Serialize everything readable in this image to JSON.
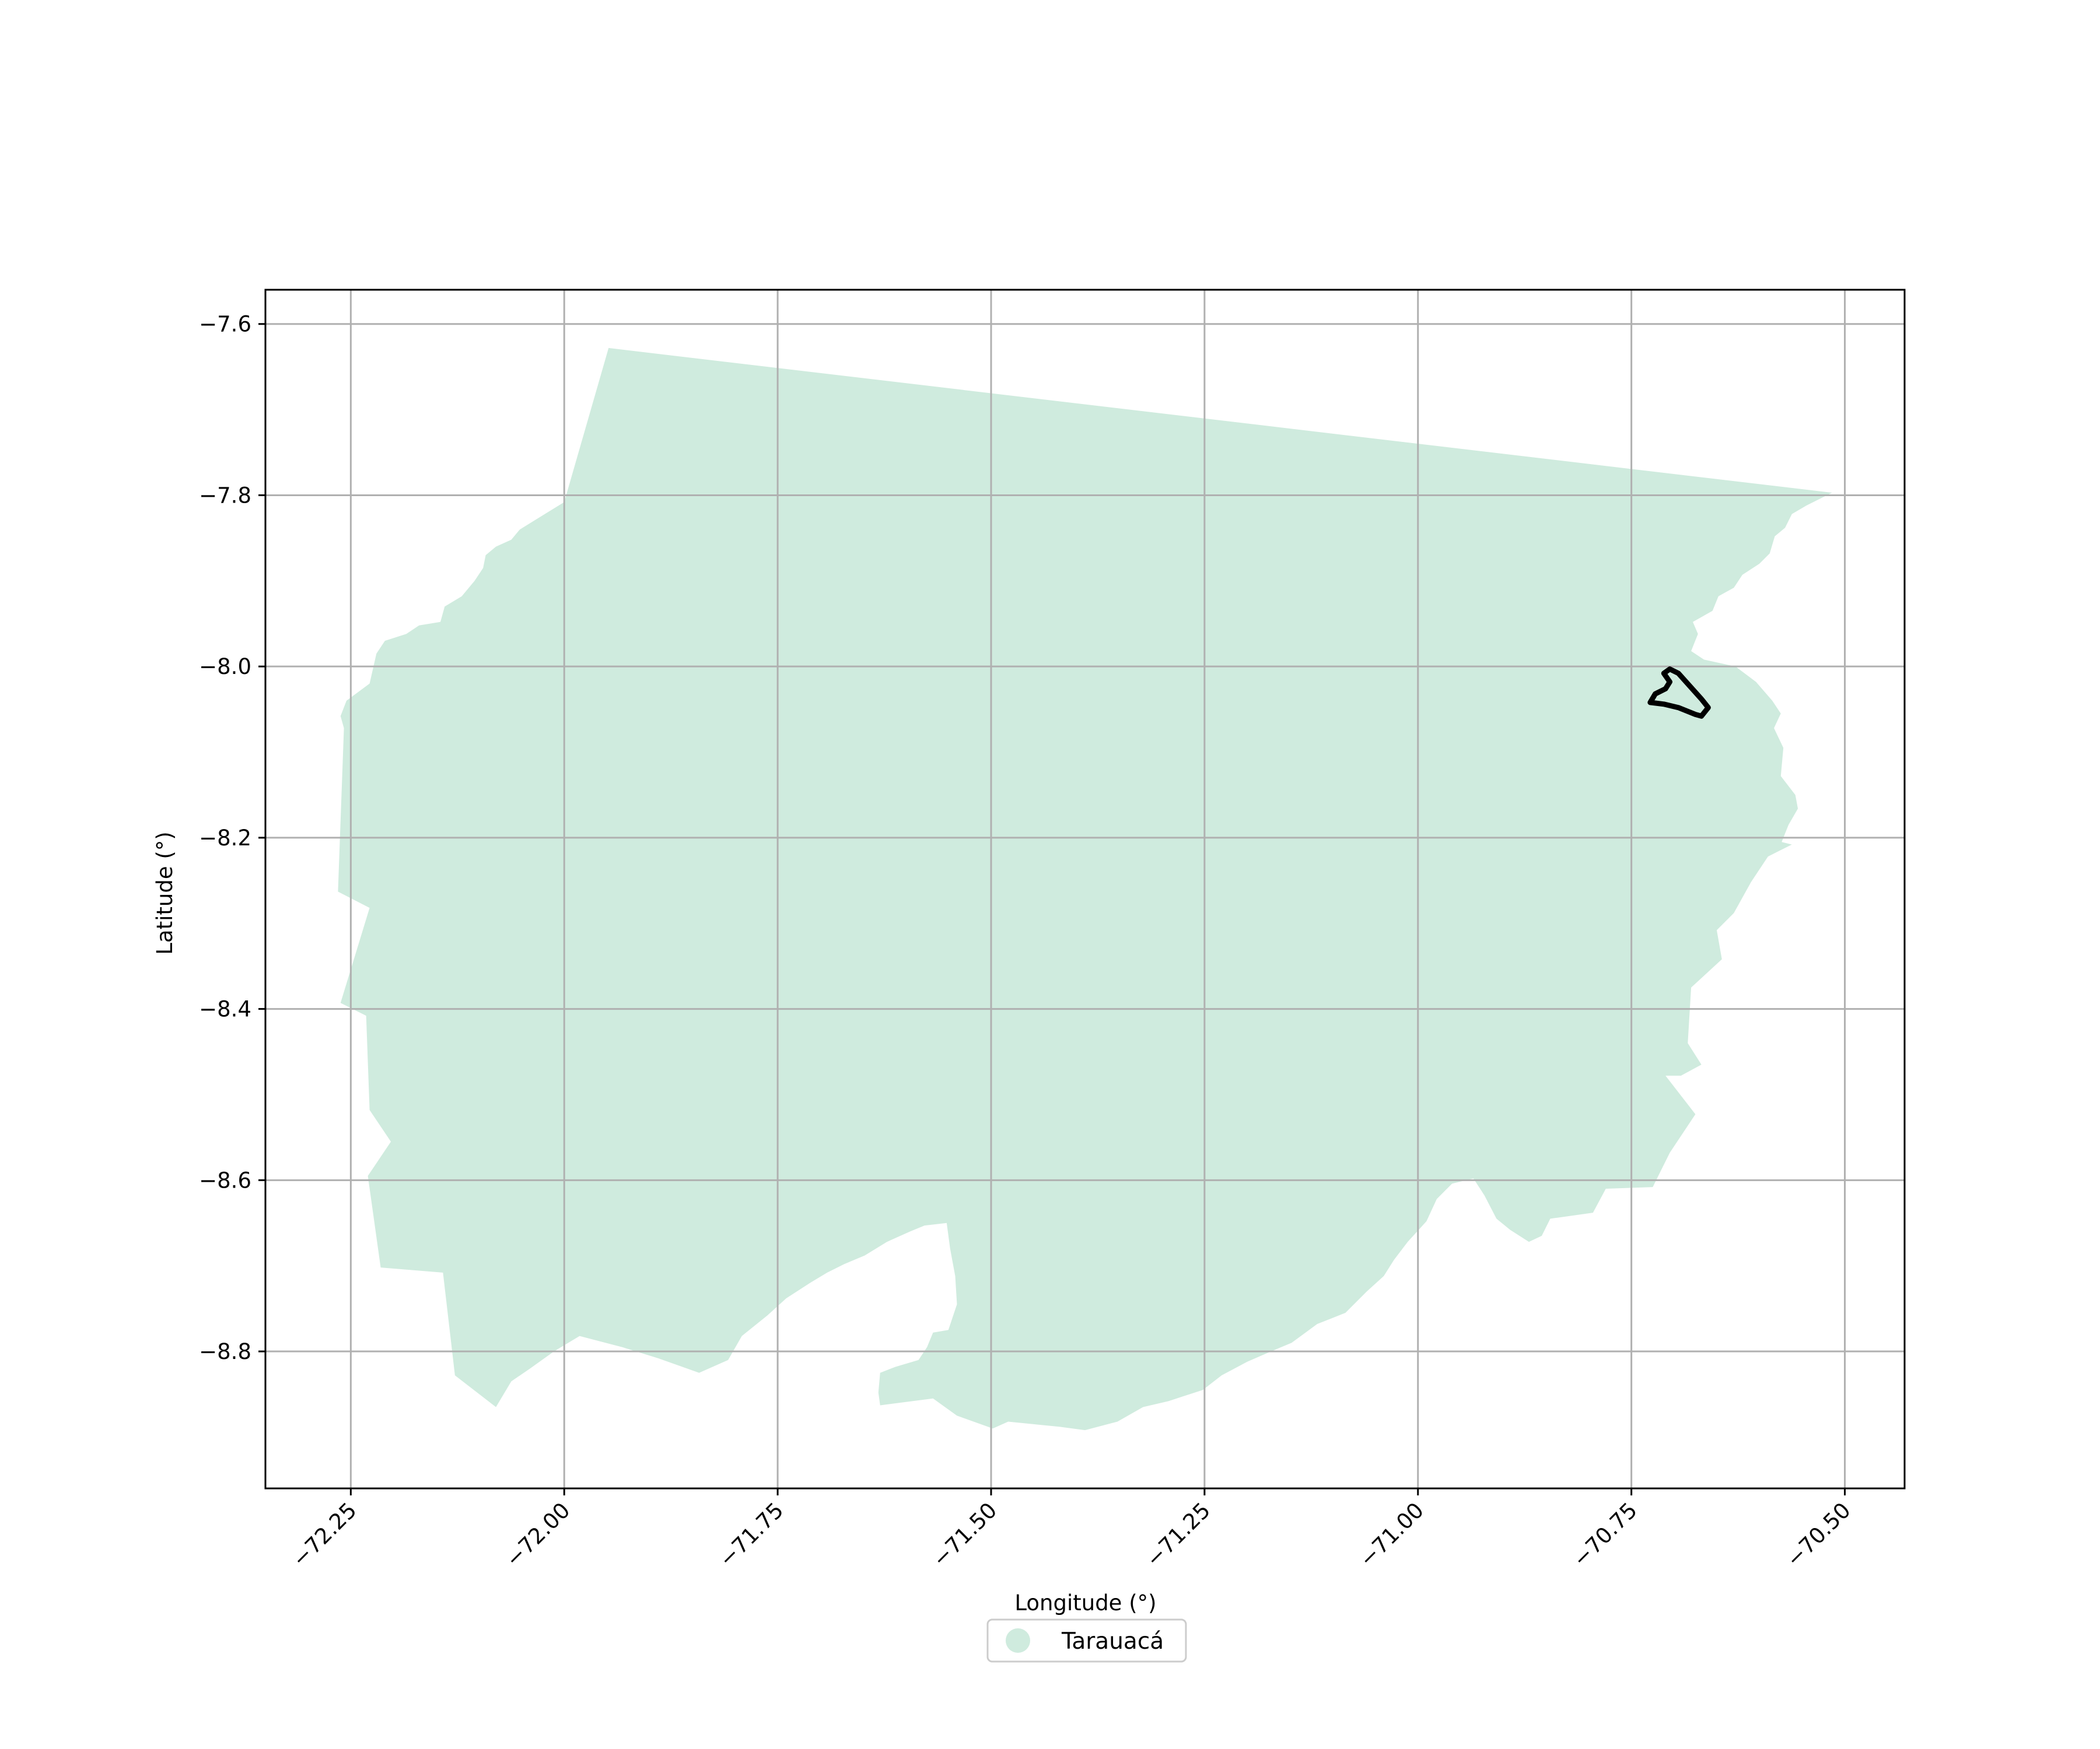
{
  "map": {
    "xlabel": "Longitude (°)",
    "ylabel": "Latitude (°)",
    "xlim": [
      -72.35,
      -70.43
    ],
    "ylim": [
      -8.96,
      -7.56
    ],
    "x_ticks": [
      -72.25,
      -72.0,
      -71.75,
      -71.5,
      -71.25,
      -71.0,
      -70.75,
      -70.5
    ],
    "y_ticks": [
      -7.6,
      -7.8,
      -8.0,
      -8.2,
      -8.4,
      -8.6,
      -8.8
    ],
    "x_tick_labels": [
      "−72.25",
      "−72.00",
      "−71.75",
      "−71.50",
      "−71.25",
      "−71.00",
      "−70.75",
      "−70.50"
    ],
    "y_tick_labels": [
      "−7.6",
      "−7.8",
      "−8.0",
      "−8.2",
      "−8.4",
      "−8.6",
      "−8.8"
    ],
    "grid": true,
    "legend": {
      "placement": "bottom-center",
      "entries": [
        {
          "label": "Tarauacá",
          "color": "#cfebde"
        }
      ]
    },
    "colors": {
      "region_fill": "#cfebde",
      "grid": "#b0b0b0",
      "outline": "#000000"
    },
    "region": {
      "name": "Tarauacá",
      "boundary": [
        [
          -71.948,
          -7.628
        ],
        [
          -70.515,
          -7.797
        ],
        [
          -70.545,
          -7.812
        ],
        [
          -70.562,
          -7.822
        ],
        [
          -70.57,
          -7.838
        ],
        [
          -70.582,
          -7.848
        ],
        [
          -70.588,
          -7.868
        ],
        [
          -70.6,
          -7.88
        ],
        [
          -70.62,
          -7.893
        ],
        [
          -70.63,
          -7.908
        ],
        [
          -70.648,
          -7.918
        ],
        [
          -70.655,
          -7.935
        ],
        [
          -70.678,
          -7.948
        ],
        [
          -70.672,
          -7.962
        ],
        [
          -70.68,
          -7.982
        ],
        [
          -70.665,
          -7.992
        ],
        [
          -70.628,
          -8.0
        ],
        [
          -70.604,
          -8.018
        ],
        [
          -70.585,
          -8.04
        ],
        [
          -70.575,
          -8.055
        ],
        [
          -70.583,
          -8.072
        ],
        [
          -70.572,
          -8.095
        ],
        [
          -70.575,
          -8.128
        ],
        [
          -70.558,
          -8.15
        ],
        [
          -70.555,
          -8.166
        ],
        [
          -70.566,
          -8.185
        ],
        [
          -70.574,
          -8.205
        ],
        [
          -70.562,
          -8.208
        ],
        [
          -70.59,
          -8.222
        ],
        [
          -70.61,
          -8.252
        ],
        [
          -70.63,
          -8.288
        ],
        [
          -70.65,
          -8.308
        ],
        [
          -70.644,
          -8.342
        ],
        [
          -70.68,
          -8.375
        ],
        [
          -70.684,
          -8.44
        ],
        [
          -70.668,
          -8.465
        ],
        [
          -70.692,
          -8.478
        ],
        [
          -70.71,
          -8.478
        ],
        [
          -70.675,
          -8.523
        ],
        [
          -70.705,
          -8.568
        ],
        [
          -70.725,
          -8.608
        ],
        [
          -70.78,
          -8.61
        ],
        [
          -70.795,
          -8.638
        ],
        [
          -70.845,
          -8.645
        ],
        [
          -70.855,
          -8.665
        ],
        [
          -70.87,
          -8.672
        ],
        [
          -70.892,
          -8.658
        ],
        [
          -70.908,
          -8.645
        ],
        [
          -70.922,
          -8.618
        ],
        [
          -70.935,
          -8.598
        ],
        [
          -70.96,
          -8.604
        ],
        [
          -70.978,
          -8.622
        ],
        [
          -70.99,
          -8.648
        ],
        [
          -71.012,
          -8.672
        ],
        [
          -71.028,
          -8.693
        ],
        [
          -71.04,
          -8.712
        ],
        [
          -71.06,
          -8.73
        ],
        [
          -71.085,
          -8.755
        ],
        [
          -71.118,
          -8.768
        ],
        [
          -71.148,
          -8.79
        ],
        [
          -71.172,
          -8.8
        ],
        [
          -71.2,
          -8.812
        ],
        [
          -71.23,
          -8.828
        ],
        [
          -71.252,
          -8.845
        ],
        [
          -71.292,
          -8.858
        ],
        [
          -71.322,
          -8.865
        ],
        [
          -71.352,
          -8.882
        ],
        [
          -71.39,
          -8.892
        ],
        [
          -71.42,
          -8.888
        ],
        [
          -71.45,
          -8.885
        ],
        [
          -71.48,
          -8.882
        ],
        [
          -71.498,
          -8.89
        ],
        [
          -71.54,
          -8.875
        ],
        [
          -71.568,
          -8.855
        ],
        [
          -71.63,
          -8.863
        ],
        [
          -71.632,
          -8.848
        ],
        [
          -71.63,
          -8.825
        ],
        [
          -71.612,
          -8.818
        ],
        [
          -71.585,
          -8.81
        ],
        [
          -71.575,
          -8.795
        ],
        [
          -71.568,
          -8.778
        ],
        [
          -71.55,
          -8.775
        ],
        [
          -71.54,
          -8.745
        ],
        [
          -71.542,
          -8.712
        ],
        [
          -71.548,
          -8.68
        ],
        [
          -71.552,
          -8.65
        ],
        [
          -71.578,
          -8.653
        ],
        [
          -71.595,
          -8.66
        ],
        [
          -71.622,
          -8.672
        ],
        [
          -71.648,
          -8.688
        ],
        [
          -71.672,
          -8.698
        ],
        [
          -71.692,
          -8.708
        ],
        [
          -71.712,
          -8.72
        ],
        [
          -71.74,
          -8.738
        ],
        [
          -71.762,
          -8.758
        ],
        [
          -71.792,
          -8.782
        ],
        [
          -71.808,
          -8.81
        ],
        [
          -71.842,
          -8.825
        ],
        [
          -71.89,
          -8.808
        ],
        [
          -71.932,
          -8.795
        ],
        [
          -71.982,
          -8.782
        ],
        [
          -72.012,
          -8.8
        ],
        [
          -72.04,
          -8.82
        ],
        [
          -72.062,
          -8.835
        ],
        [
          -72.08,
          -8.865
        ],
        [
          -72.128,
          -8.828
        ],
        [
          -72.142,
          -8.708
        ],
        [
          -72.215,
          -8.702
        ],
        [
          -72.23,
          -8.595
        ],
        [
          -72.203,
          -8.555
        ],
        [
          -72.228,
          -8.518
        ],
        [
          -72.232,
          -8.408
        ],
        [
          -72.262,
          -8.393
        ],
        [
          -72.228,
          -8.282
        ],
        [
          -72.265,
          -8.263
        ],
        [
          -72.258,
          -8.072
        ],
        [
          -72.262,
          -8.058
        ],
        [
          -72.255,
          -8.04
        ],
        [
          -72.228,
          -8.02
        ],
        [
          -72.22,
          -7.985
        ],
        [
          -72.21,
          -7.97
        ],
        [
          -72.185,
          -7.962
        ],
        [
          -72.17,
          -7.952
        ],
        [
          -72.145,
          -7.948
        ],
        [
          -72.14,
          -7.93
        ],
        [
          -72.12,
          -7.918
        ],
        [
          -72.105,
          -7.9
        ],
        [
          -72.095,
          -7.885
        ],
        [
          -72.092,
          -7.87
        ],
        [
          -72.08,
          -7.86
        ],
        [
          -72.062,
          -7.852
        ],
        [
          -72.052,
          -7.84
        ],
        [
          -72.0,
          -7.808
        ],
        [
          -71.948,
          -7.628
        ]
      ]
    },
    "outline_feature": {
      "boundary": [
        [
          -70.712,
          -8.008
        ],
        [
          -70.705,
          -8.003
        ],
        [
          -70.695,
          -8.008
        ],
        [
          -70.668,
          -8.038
        ],
        [
          -70.66,
          -8.048
        ],
        [
          -70.668,
          -8.058
        ],
        [
          -70.675,
          -8.056
        ],
        [
          -70.695,
          -8.048
        ],
        [
          -70.712,
          -8.044
        ],
        [
          -70.728,
          -8.042
        ],
        [
          -70.722,
          -8.032
        ],
        [
          -70.71,
          -8.026
        ],
        [
          -70.705,
          -8.018
        ],
        [
          -70.712,
          -8.008
        ]
      ]
    }
  }
}
